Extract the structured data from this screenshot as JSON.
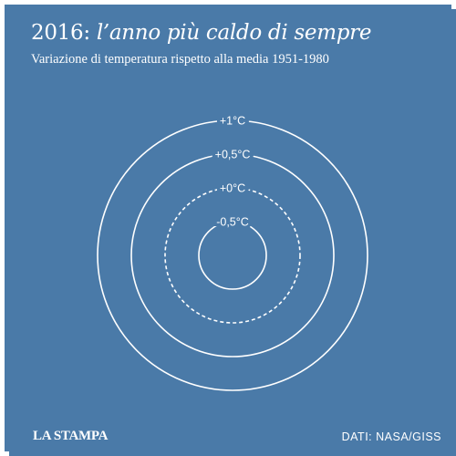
{
  "header": {
    "year": "2016:",
    "headline": "l’anno più caldo di sempre",
    "subtitle": "Variazione di temperatura rispetto alla media 1951-1980"
  },
  "footer": {
    "logo": "LA STAMPA",
    "source": "DATI: NASA/GISS"
  },
  "colors": {
    "background": "#4a7aa8",
    "foreground": "#ffffff"
  },
  "chart_data": {
    "type": "radial",
    "title": "2016: l’anno più caldo di sempre",
    "subtitle": "Variazione di temperatura rispetto alla media 1951-1980",
    "unit": "°C",
    "baseline": "media 1951-1980",
    "rings": [
      {
        "value": -0.5,
        "label": "-0,5°C",
        "dashed": false
      },
      {
        "value": 0,
        "label": "+0°C",
        "dashed": true
      },
      {
        "value": 0.5,
        "label": "+0,5°C",
        "dashed": false
      },
      {
        "value": 1,
        "label": "+1°C",
        "dashed": false
      }
    ],
    "series": []
  }
}
